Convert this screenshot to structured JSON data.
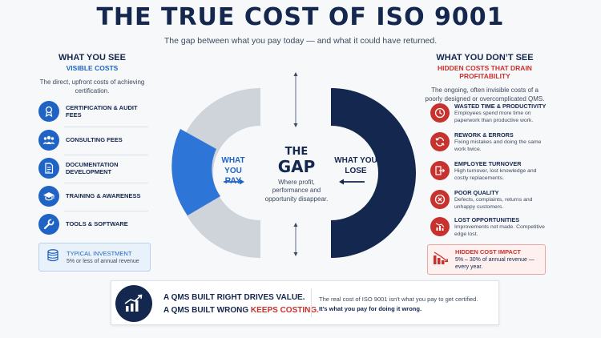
{
  "title": "THE TRUE COST OF ISO 9001",
  "subtitle": "The gap between what you pay today — and what it could have returned.",
  "left": {
    "heading": "WHAT YOU SEE",
    "subheading": "VISIBLE COSTS",
    "description": "The direct, upfront costs of achieving certification.",
    "items": [
      {
        "label": "CERTIFICATION & AUDIT FEES",
        "icon": "award-icon"
      },
      {
        "label": "CONSULTING FEES",
        "icon": "people-icon"
      },
      {
        "label": "DOCUMENTATION DEVELOPMENT",
        "icon": "document-icon"
      },
      {
        "label": "TRAINING & AWARENESS",
        "icon": "graduation-cap-icon"
      },
      {
        "label": "TOOLS & SOFTWARE",
        "icon": "wrench-icon"
      }
    ],
    "typical": {
      "label": "TYPICAL INVESTMENT",
      "value": "5% or less of annual revenue"
    }
  },
  "center": {
    "pay_line1": "WHAT YOU",
    "pay_line2": "PAY",
    "lose_line1": "WHAT YOU",
    "lose_line2": "LOSE",
    "gap_the": "THE",
    "gap_word": "GAP",
    "gap_desc": "Where profit, performance and opportunity disappear.",
    "colors": {
      "pay": "#1f64c4",
      "ring_gray": "#cfd4db",
      "lose": "#14274e"
    }
  },
  "right": {
    "heading": "WHAT YOU DON’T SEE",
    "subheading": "HIDDEN COSTS THAT DRAIN PROFITABILITY",
    "description": "The ongoing, often invisible costs of a poorly designed or overcomplicated QMS.",
    "items": [
      {
        "title": "WASTED TIME & PRODUCTIVITY",
        "desc": "Employees spend more time on paperwork than productive work.",
        "icon": "clock-icon"
      },
      {
        "title": "REWORK & ERRORS",
        "desc": "Fixing mistakes and doing the same work twice.",
        "icon": "refresh-icon"
      },
      {
        "title": "EMPLOYEE TURNOVER",
        "desc": "High turnover, lost knowledge and costly replacements.",
        "icon": "exit-door-icon"
      },
      {
        "title": "POOR QUALITY",
        "desc": "Defects, complaints, returns and unhappy customers.",
        "icon": "cancel-icon"
      },
      {
        "title": "LOST OPPORTUNITIES",
        "desc": "Improvements not made. Competitive edge lost.",
        "icon": "declining-chart-icon"
      }
    ],
    "impact": {
      "label": "HIDDEN COST IMPACT",
      "value": "5% – 30% of annual revenue — every year."
    }
  },
  "bottom": {
    "line1": "A QMS BUILT RIGHT DRIVES VALUE.",
    "line2_prefix": "A QMS BUILT WRONG ",
    "line2_red": "KEEPS COSTING.",
    "right1": "The real cost of ISO 9001 isn’t what you pay to get certified.",
    "right2": "It’s what you pay for doing it wrong."
  }
}
